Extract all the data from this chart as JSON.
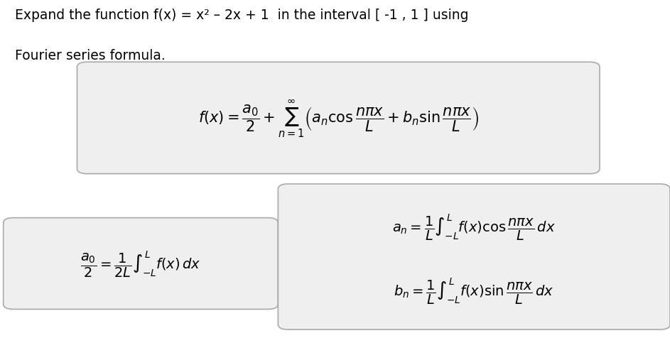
{
  "title_line1": "Expand the function f(x) = x² – 2x + 1  in the interval [ -1 , 1 ] using",
  "title_line2": "Fourier series formula.",
  "bg_color": "#ffffff",
  "box_bg": "#efefef",
  "box_edge": "#aaaaaa",
  "formula_main": "$f(x) = \\dfrac{a_0}{2} + \\sum_{n=1}^{\\infty}\\left(a_n \\cos\\dfrac{n\\pi x}{L} + b_n \\sin\\dfrac{n\\pi x}{L}\\right)$",
  "formula_a0": "$\\dfrac{a_0}{2} = \\dfrac{1}{2L}\\int_{-L}^{L} f(x)\\,dx$",
  "formula_an": "$a_n = \\dfrac{1}{L}\\int_{-L}^{L} f(x)\\cos\\dfrac{n\\pi x}{L}\\,dx$",
  "formula_bn": "$b_n = \\dfrac{1}{L}\\int_{-L}^{L} f(x)\\sin\\dfrac{n\\pi x}{L}\\,dx$",
  "title_fontsize": 13.5,
  "formula_main_fontsize": 15,
  "formula_sub_fontsize": 14
}
